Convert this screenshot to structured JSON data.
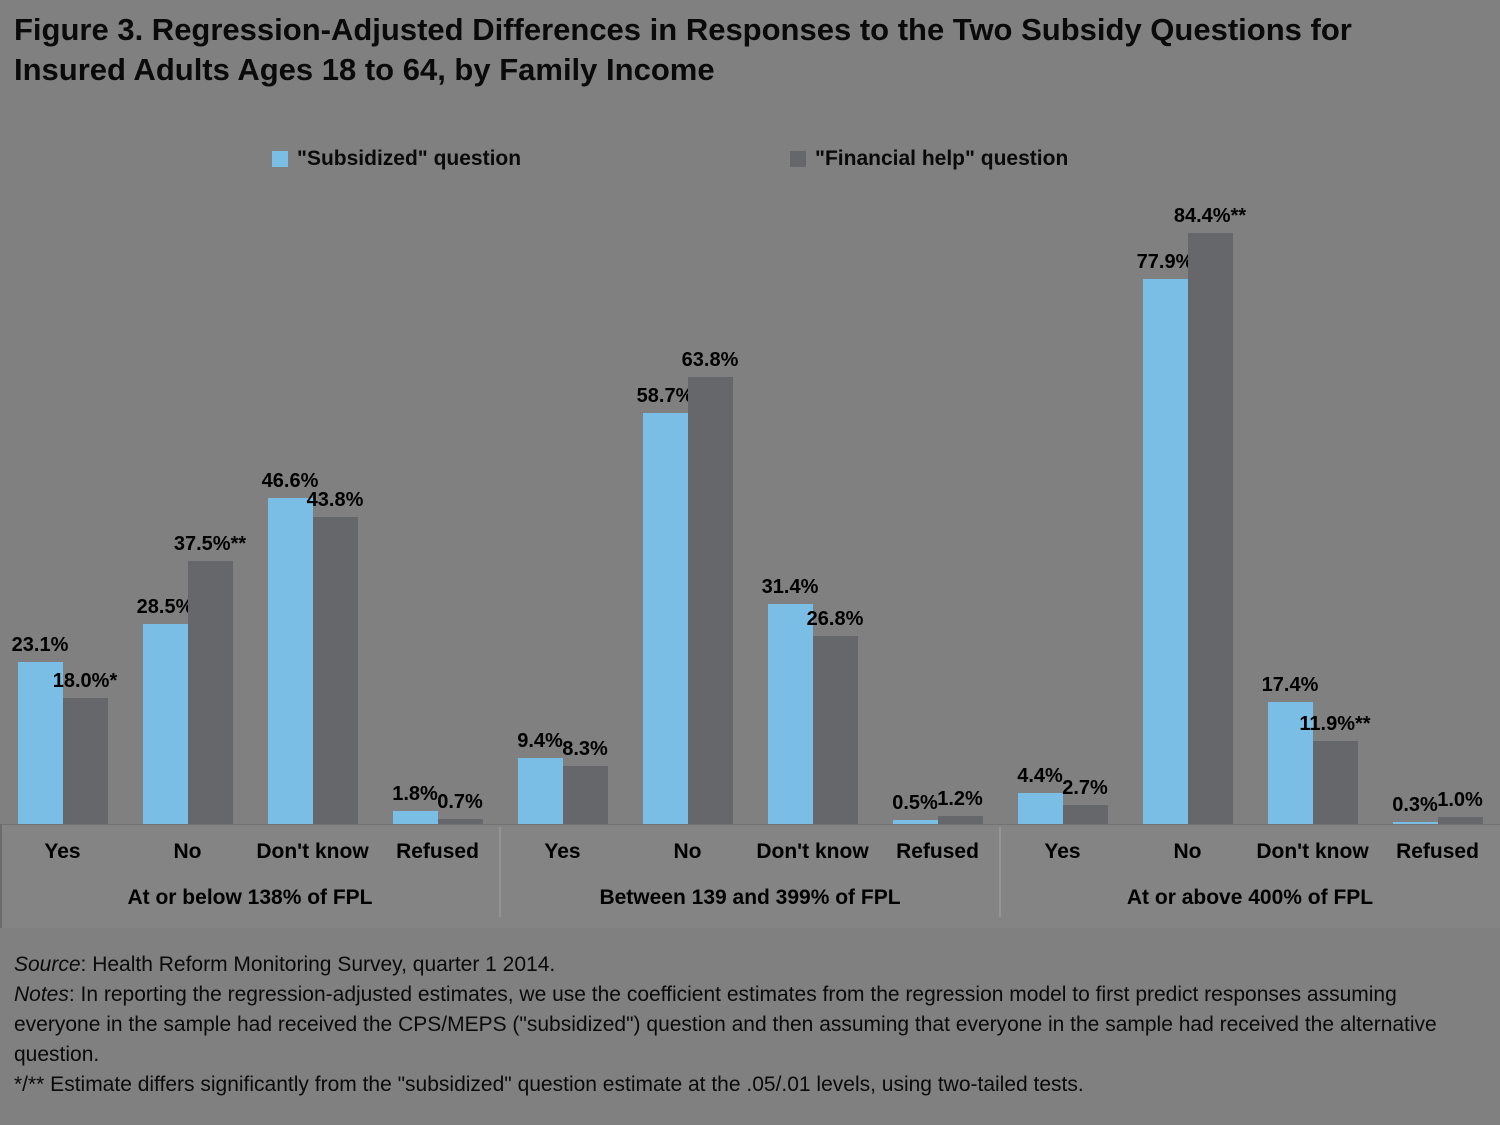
{
  "figure": {
    "title_line1": "Figure 3. Regression-Adjusted Differences in Responses to the Two Subsidy Questions for",
    "title_line2": "Insured Adults Ages 18 to 64, by Family Income"
  },
  "legend": {
    "items": [
      {
        "label": "\"Subsidized\" question",
        "color": "#7abde5"
      },
      {
        "label": "\"Financial help\" question",
        "color": "#66676a"
      }
    ]
  },
  "chart_data": {
    "type": "bar",
    "unit": "percent",
    "ylim": [
      0,
      100
    ],
    "grid": false,
    "legend_position": "top",
    "series_names": [
      "\"Subsidized\" question",
      "\"Financial help\" question"
    ],
    "series_colors": [
      "#7abde5",
      "#66676a"
    ],
    "groups": [
      {
        "label": "At or below 138% of FPL",
        "categories": [
          "Yes",
          "No",
          "Don't know",
          "Refused"
        ],
        "subsidized_values": [
          23.1,
          28.5,
          46.6,
          1.8
        ],
        "subsidized_labels": [
          "23.1%",
          "28.5%",
          "46.6%",
          "1.8%"
        ],
        "financial_help_values": [
          18.0,
          37.5,
          43.8,
          0.7
        ],
        "financial_help_labels": [
          "18.0%*",
          "37.5%**",
          "43.8%",
          "0.7%"
        ]
      },
      {
        "label": "Between 139 and 399% of FPL",
        "categories": [
          "Yes",
          "No",
          "Don't know",
          "Refused"
        ],
        "subsidized_values": [
          9.4,
          58.7,
          31.4,
          0.5
        ],
        "subsidized_labels": [
          "9.4%",
          "58.7%",
          "31.4%",
          "0.5%"
        ],
        "financial_help_values": [
          8.3,
          63.8,
          26.8,
          1.2
        ],
        "financial_help_labels": [
          "8.3%",
          "63.8%",
          "26.8%",
          "1.2%"
        ]
      },
      {
        "label": "At or above 400% of FPL",
        "categories": [
          "Yes",
          "No",
          "Don't know",
          "Refused"
        ],
        "subsidized_values": [
          4.4,
          77.9,
          17.4,
          0.3
        ],
        "subsidized_labels": [
          "4.4%",
          "77.9%",
          "17.4%",
          "0.3%"
        ],
        "financial_help_values": [
          2.7,
          84.4,
          11.9,
          1.0
        ],
        "financial_help_labels": [
          "2.7%",
          "84.4%**",
          "11.9%**",
          "1.0%"
        ]
      }
    ]
  },
  "footer": {
    "source_label": "Source",
    "source_text": ": Health Reform Monitoring Survey, quarter 1 2014.",
    "notes_label": "Notes",
    "notes_text": ": In reporting the regression-adjusted estimates, we use the coefficient estimates from the regression model to first predict responses assuming everyone in the sample had received the CPS/MEPS (\"subsidized\") question and then assuming that everyone in the sample had received the alternative question.",
    "significance_note": "*/** Estimate differs significantly from the \"subsidized\" question estimate at the .05/.01 levels, using two-tailed tests."
  },
  "colors": {
    "background": "#808080",
    "axis_band": "#848484",
    "text": "#0a0a0a"
  }
}
